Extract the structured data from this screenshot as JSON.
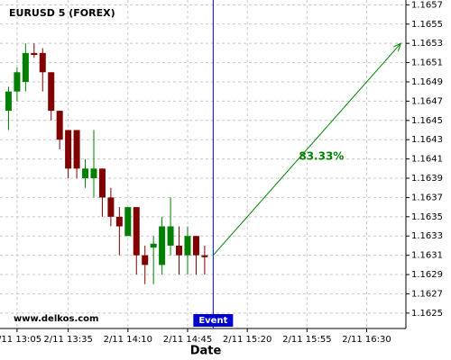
{
  "chart_data": {
    "type": "candlestick",
    "title": "EURUSD 5 (FOREX)",
    "xlabel": "Date",
    "watermark": "www.delkos.com",
    "up_color": "#008000",
    "down_color": "#800000",
    "grid": true,
    "xlim": [
      775,
      1013
    ],
    "ylim": [
      1.16234,
      1.16575
    ],
    "xticks": [
      {
        "value": 785,
        "label": "2/11 13:05"
      },
      {
        "value": 815,
        "label": "2/11 13:35"
      },
      {
        "value": 850,
        "label": "2/11 14:10"
      },
      {
        "value": 885,
        "label": "2/11 14:45"
      },
      {
        "value": 920,
        "label": "2/11 15:20"
      },
      {
        "value": 955,
        "label": "2/11 15:55"
      },
      {
        "value": 990,
        "label": "2/11 16:30"
      }
    ],
    "yticks": [
      1.1625,
      1.1627,
      1.1629,
      1.1631,
      1.1633,
      1.1635,
      1.1637,
      1.1639,
      1.1641,
      1.1643,
      1.1645,
      1.1647,
      1.1649,
      1.1651,
      1.1653,
      1.1655,
      1.1657
    ],
    "x": [
      780,
      785,
      790,
      795,
      800,
      805,
      810,
      815,
      820,
      825,
      830,
      835,
      840,
      845,
      850,
      855,
      860,
      865,
      870,
      875,
      880,
      885,
      890,
      895
    ],
    "open": [
      1.1646,
      1.1648,
      1.1649,
      1.1652,
      1.1652,
      1.165,
      1.1646,
      1.1644,
      1.1644,
      1.1639,
      1.1639,
      1.164,
      1.1637,
      1.1635,
      1.1633,
      1.1636,
      1.1631,
      1.16318,
      1.163,
      1.1632,
      1.1632,
      1.1631,
      1.1633,
      1.1631
    ],
    "high": [
      1.16485,
      1.16505,
      1.1653,
      1.1653,
      1.16525,
      1.165,
      1.1646,
      1.1644,
      1.1644,
      1.1641,
      1.1644,
      1.164,
      1.1638,
      1.1636,
      1.1636,
      1.1636,
      1.1632,
      1.1633,
      1.1635,
      1.1637,
      1.1634,
      1.1634,
      1.1633,
      1.1632
    ],
    "low": [
      1.1644,
      1.1647,
      1.1648,
      1.16515,
      1.1648,
      1.1645,
      1.1642,
      1.1639,
      1.1639,
      1.1638,
      1.1637,
      1.1635,
      1.1634,
      1.1631,
      1.1633,
      1.1629,
      1.1628,
      1.1628,
      1.1629,
      1.1631,
      1.1629,
      1.1629,
      1.1629,
      1.1629
    ],
    "close": [
      1.1648,
      1.165,
      1.1652,
      1.16518,
      1.165,
      1.1646,
      1.1643,
      1.164,
      1.164,
      1.164,
      1.164,
      1.1637,
      1.1635,
      1.1634,
      1.1636,
      1.1631,
      1.163,
      1.16322,
      1.1634,
      1.1634,
      1.1631,
      1.1633,
      1.1631,
      1.16308
    ],
    "event": {
      "label": "Event",
      "x": 900,
      "color": "#0000cc"
    },
    "projection": {
      "label": "83.33%",
      "x": [
        900,
        1010
      ],
      "y": [
        1.1631,
        1.1653
      ],
      "color": "#008000"
    }
  }
}
